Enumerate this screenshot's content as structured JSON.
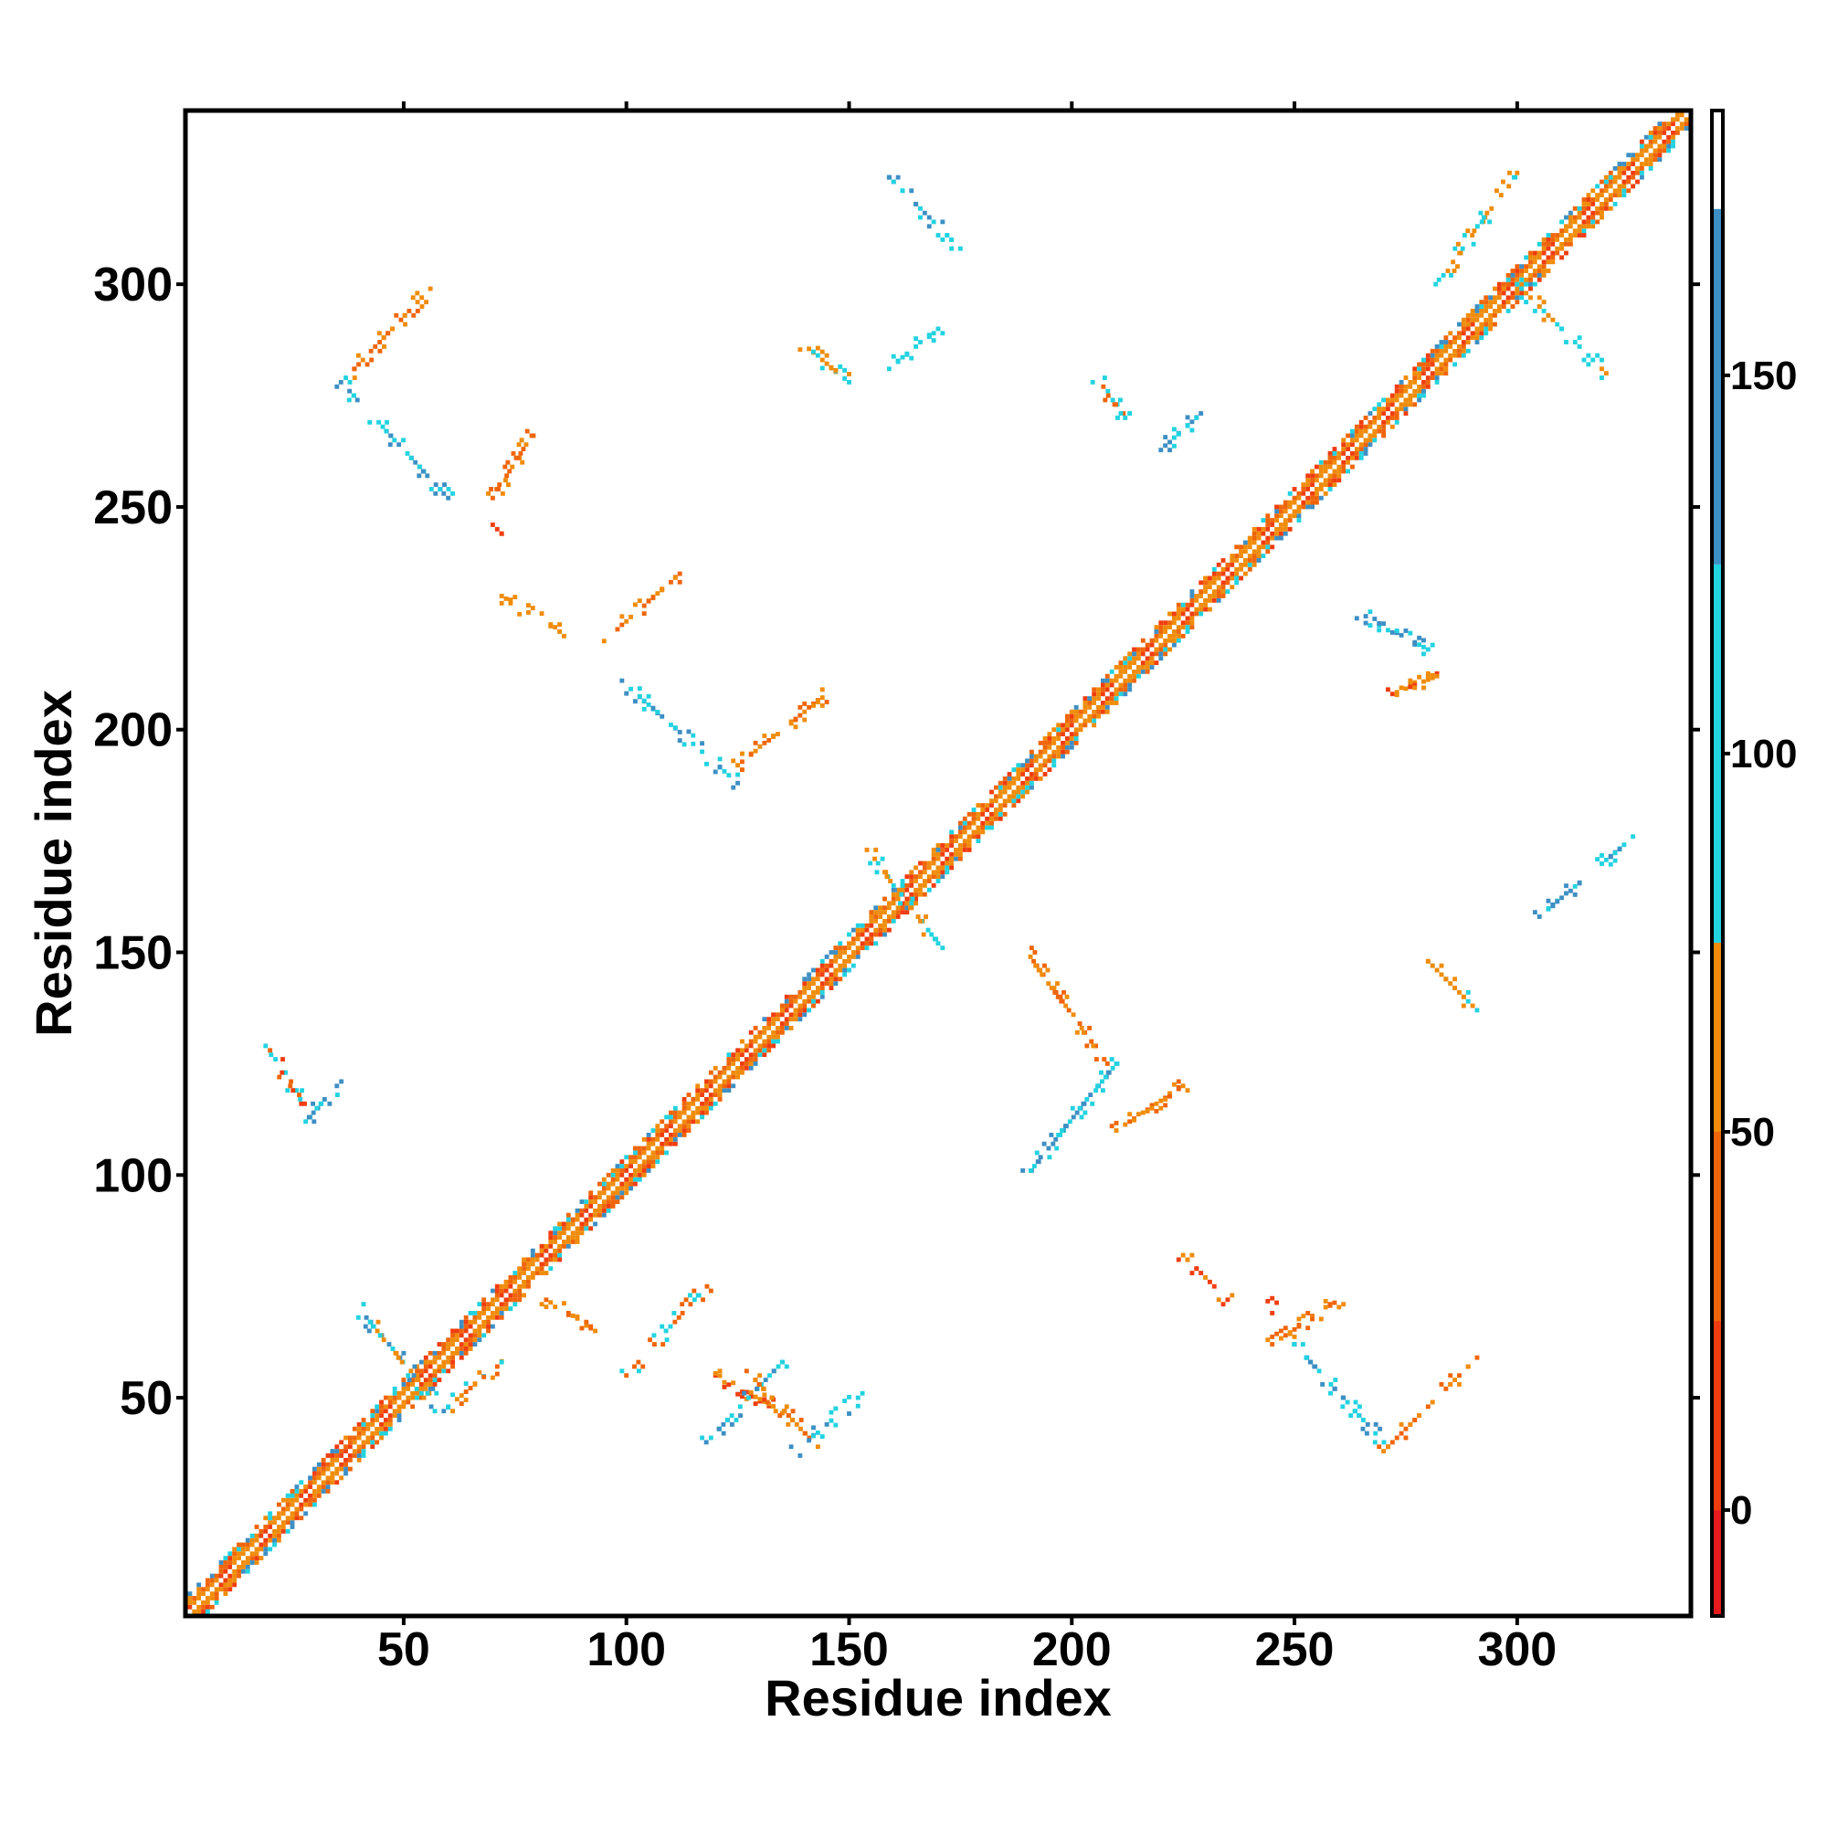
{
  "chart_data": {
    "type": "heatmap",
    "title": "",
    "xlabel": "Residue index",
    "ylabel": "Residue index",
    "xlim": [
      1,
      339
    ],
    "ylim": [
      1,
      339
    ],
    "x_ticks": [
      50,
      100,
      150,
      200,
      250,
      300
    ],
    "y_ticks": [
      50,
      100,
      150,
      200,
      250,
      300
    ],
    "grid": false,
    "symmetric": true,
    "colorbar": {
      "ticks": [
        0,
        50,
        100,
        150
      ],
      "range": [
        -14,
        185
      ],
      "bands": [
        {
          "from": -14,
          "to": 0,
          "color": "#e41a1c"
        },
        {
          "from": 0,
          "to": 25,
          "color": "#f03d0f"
        },
        {
          "from": 25,
          "to": 50,
          "color": "#f0650a"
        },
        {
          "from": 50,
          "to": 75,
          "color": "#f08c0a"
        },
        {
          "from": 75,
          "to": 125,
          "color": "#22d3e0"
        },
        {
          "from": 125,
          "to": 172,
          "color": "#3d8fc4"
        },
        {
          "from": 172,
          "to": 185,
          "color": "#ffffff"
        }
      ]
    },
    "diagonal": {
      "from": 1,
      "to": 339
    },
    "off_diagonal_contacts": [
      {
        "x": [
          20,
          28
        ],
        "y": [
          115,
          128
        ],
        "colors": [
          "#f03d0f",
          "#f0650a",
          "#22d3e0"
        ]
      },
      {
        "x": [
          28,
          35
        ],
        "y": [
          112,
          120
        ],
        "colors": [
          "#22d3e0",
          "#3d8fc4"
        ]
      },
      {
        "x": [
          40,
          58
        ],
        "y": [
          48,
          70
        ],
        "colors": [
          "#22d3e0",
          "#3d8fc4",
          "#f08c0a"
        ]
      },
      {
        "x": [
          60,
          72
        ],
        "y": [
          48,
          58
        ],
        "colors": [
          "#f08c0a",
          "#f0650a",
          "#22d3e0"
        ]
      },
      {
        "x": [
          82,
          92
        ],
        "y": [
          66,
          72
        ],
        "colors": [
          "#f08c0a",
          "#f0650a"
        ]
      },
      {
        "x": [
          100,
          118
        ],
        "y": [
          55,
          75
        ],
        "colors": [
          "#f0650a",
          "#22d3e0"
        ]
      },
      {
        "x": [
          120,
          135
        ],
        "y": [
          47,
          55
        ],
        "colors": [
          "#f08c0a",
          "#f03d0f"
        ]
      },
      {
        "x": [
          118,
          135
        ],
        "y": [
          40,
          58
        ],
        "colors": [
          "#22d3e0",
          "#3d8fc4"
        ]
      },
      {
        "x": [
          128,
          142
        ],
        "y": [
          40,
          55
        ],
        "colors": [
          "#f08c0a",
          "#f0650a"
        ]
      },
      {
        "x": [
          138,
          152
        ],
        "y": [
          38,
          50
        ],
        "colors": [
          "#22d3e0",
          "#3d8fc4"
        ]
      },
      {
        "x": [
          155,
          170
        ],
        "y": [
          152,
          172
        ],
        "colors": [
          "#22d3e0",
          "#f08c0a"
        ]
      },
      {
        "x": [
          190,
          210
        ],
        "y": [
          100,
          125
        ],
        "colors": [
          "#22d3e0",
          "#3d8fc4"
        ]
      },
      {
        "x": [
          190,
          208
        ],
        "y": [
          125,
          150
        ],
        "colors": [
          "#f08c0a",
          "#f0650a"
        ]
      },
      {
        "x": [
          210,
          225
        ],
        "y": [
          110,
          120
        ],
        "colors": [
          "#f0650a",
          "#f08c0a"
        ]
      },
      {
        "x": [
          225,
          235
        ],
        "y": [
          72,
          82
        ],
        "colors": [
          "#f08c0a",
          "#f03d0f"
        ]
      },
      {
        "x": [
          245,
          260
        ],
        "y": [
          62,
          72
        ],
        "colors": [
          "#f08c0a",
          "#f0650a"
        ]
      },
      {
        "x": [
          250,
          270
        ],
        "y": [
          40,
          62
        ],
        "colors": [
          "#22d3e0",
          "#3d8fc4"
        ]
      },
      {
        "x": [
          270,
          290
        ],
        "y": [
          38,
          58
        ],
        "colors": [
          "#f08c0a",
          "#f0650a"
        ]
      },
      {
        "x": [
          265,
          280
        ],
        "y": [
          218,
          226
        ],
        "colors": [
          "#22d3e0",
          "#3d8fc4"
        ]
      },
      {
        "x": [
          272,
          282
        ],
        "y": [
          208,
          212
        ],
        "colors": [
          "#f08c0a",
          "#f03d0f"
        ]
      },
      {
        "x": [
          280,
          290
        ],
        "y": [
          138,
          148
        ],
        "colors": [
          "#f08c0a",
          "#22d3e0"
        ]
      },
      {
        "x": [
          305,
          325
        ],
        "y": [
          158,
          175
        ],
        "colors": [
          "#22d3e0",
          "#3d8fc4"
        ]
      },
      {
        "x": [
          300,
          320
        ],
        "y": [
          280,
          300
        ],
        "colors": [
          "#f08c0a",
          "#22d3e0"
        ]
      },
      {
        "x": [
          282,
          300
        ],
        "y": [
          300,
          325
        ],
        "colors": [
          "#22d3e0",
          "#f08c0a"
        ]
      },
      {
        "x": [
          158,
          175
        ],
        "y": [
          308,
          325
        ],
        "colors": [
          "#22d3e0",
          "#3d8fc4"
        ]
      },
      {
        "x": [
          38,
          55
        ],
        "y": [
          280,
          298
        ],
        "colors": [
          "#f08c0a",
          "#f0650a"
        ]
      },
      {
        "x": [
          36,
          60
        ],
        "y": [
          252,
          278
        ],
        "colors": [
          "#22d3e0",
          "#3d8fc4"
        ]
      },
      {
        "x": [
          70,
          80
        ],
        "y": [
          252,
          268
        ],
        "colors": [
          "#f08c0a",
          "#f0650a"
        ]
      },
      {
        "x": [
          72,
          85
        ],
        "y": [
          222,
          230
        ],
        "colors": [
          "#f08c0a"
        ]
      },
      {
        "x": [
          95,
          112
        ],
        "y": [
          220,
          235
        ],
        "colors": [
          "#f08c0a",
          "#f0650a"
        ]
      },
      {
        "x": [
          100,
          125
        ],
        "y": [
          188,
          210
        ],
        "colors": [
          "#22d3e0",
          "#3d8fc4"
        ]
      },
      {
        "x": [
          125,
          145
        ],
        "y": [
          192,
          208
        ],
        "colors": [
          "#f08c0a",
          "#f0650a"
        ]
      },
      {
        "x": [
          138,
          150
        ],
        "y": [
          278,
          288
        ],
        "colors": [
          "#f08c0a",
          "#22d3e0"
        ]
      },
      {
        "x": [
          160,
          170
        ],
        "y": [
          282,
          290
        ],
        "colors": [
          "#22d3e0"
        ]
      },
      {
        "x": [
          205,
          212
        ],
        "y": [
          270,
          280
        ],
        "colors": [
          "#22d3e0",
          "#f0650a"
        ]
      },
      {
        "x": [
          219,
          228
        ],
        "y": [
          262,
          270
        ],
        "colors": [
          "#22d3e0",
          "#3d8fc4"
        ]
      },
      {
        "x": [
          70,
          72
        ],
        "y": [
          244,
          246
        ],
        "colors": [
          "#f03d0f"
        ]
      },
      {
        "x": [
          244,
          247
        ],
        "y": [
          70,
          72
        ],
        "colors": [
          "#f03d0f"
        ]
      }
    ]
  }
}
